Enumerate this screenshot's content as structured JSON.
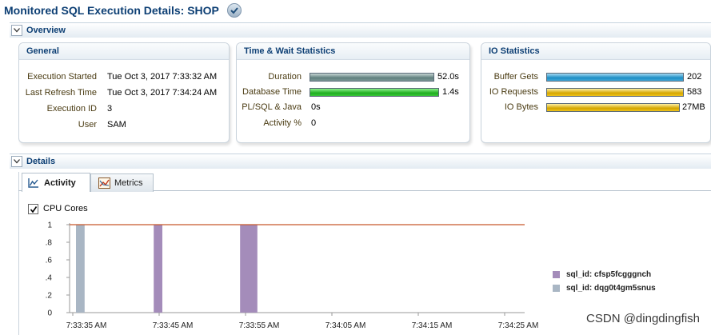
{
  "page": {
    "title": "Monitored SQL Execution Details: SHOP"
  },
  "overview": {
    "header": "Overview",
    "general": {
      "title": "General",
      "rows": [
        {
          "label": "Execution Started",
          "value": "Tue Oct 3, 2017 7:33:32 AM"
        },
        {
          "label": "Last Refresh Time",
          "value": "Tue Oct 3, 2017 7:34:24 AM"
        },
        {
          "label": "Execution ID",
          "value": "3"
        },
        {
          "label": "User",
          "value": "SAM"
        }
      ]
    },
    "time_wait": {
      "title": "Time & Wait Statistics",
      "rows": [
        {
          "label": "Duration",
          "value": "52.0s",
          "fill": 1.0
        },
        {
          "label": "Database Time",
          "value": "1.4s",
          "fill": 1.0
        },
        {
          "label": "PL/SQL & Java",
          "value": "0s"
        },
        {
          "label": "Activity %",
          "value": "0"
        }
      ]
    },
    "io": {
      "title": "IO Statistics",
      "rows": [
        {
          "label": "Buffer Gets",
          "value": "202",
          "fill": 1.0
        },
        {
          "label": "IO Requests",
          "value": "583",
          "fill": 1.0
        },
        {
          "label": "IO Bytes",
          "value": "27MB",
          "fill": 1.0
        }
      ]
    }
  },
  "details": {
    "header": "Details",
    "tabs": [
      {
        "label": "Activity",
        "active": true
      },
      {
        "label": "Metrics",
        "active": false
      }
    ],
    "cpu_cores_label": "CPU Cores",
    "cpu_cores_checked": true
  },
  "colors": {
    "title": "#0d3f74",
    "label": "#4a3b12",
    "cpu_line": "#c8582b",
    "series_1": "#a48cba",
    "series_2": "#a9b6c4"
  },
  "chart_data": {
    "type": "bar",
    "y_ticks": [
      "0",
      ".2",
      ".4",
      ".6",
      ".8",
      "1"
    ],
    "ylim": [
      0,
      1
    ],
    "x_ticks": [
      "7:33:35 AM",
      "7:33:45 AM",
      "7:33:55 AM",
      "7:34:05 AM",
      "7:34:15 AM",
      "7:34:25 AM"
    ],
    "x_range_seconds": [
      0,
      50
    ],
    "cpu_cores": 1,
    "series": [
      {
        "name": "sql_id: cfsp5fcgggnch",
        "color": "#a48cba",
        "bars": [
          {
            "start": 9,
            "end": 10,
            "value": 1
          },
          {
            "start": 19,
            "end": 21,
            "value": 1
          }
        ]
      },
      {
        "name": "sql_id: dqg0t4gm5snus",
        "color": "#a9b6c4",
        "bars": [
          {
            "start": 0,
            "end": 1,
            "value": 1
          }
        ]
      }
    ]
  },
  "watermark": "CSDN @dingdingfish"
}
